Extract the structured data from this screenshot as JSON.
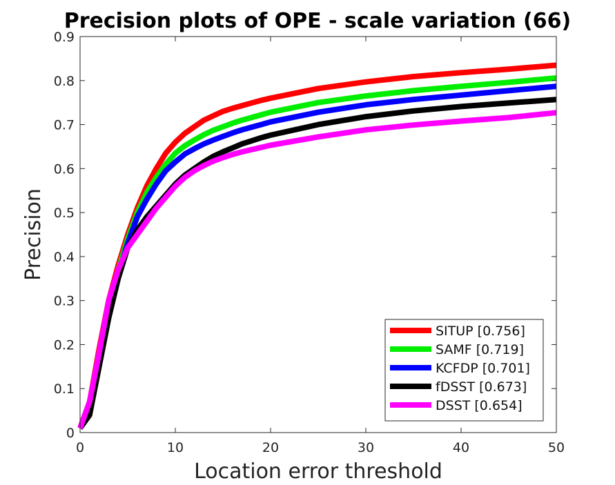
{
  "chart_data": {
    "type": "line",
    "title": "Precision plots of OPE - scale variation (66)",
    "xlabel": "Location error threshold",
    "ylabel": "Precision",
    "xlim": [
      0,
      50
    ],
    "ylim": [
      0,
      0.9
    ],
    "xticks": [
      0,
      10,
      20,
      30,
      40,
      50
    ],
    "yticks": [
      0,
      0.1,
      0.2,
      0.3,
      0.4,
      0.5,
      0.6,
      0.7,
      0.8,
      0.9
    ],
    "xtick_labels": [
      "0",
      "10",
      "20",
      "30",
      "40",
      "50"
    ],
    "ytick_labels": [
      "0",
      "0.1",
      "0.2",
      "0.3",
      "0.4",
      "0.5",
      "0.6",
      "0.7",
      "0.8",
      "0.9"
    ],
    "grid": false,
    "legend_position": "bottom-right",
    "x": [
      0,
      1,
      2,
      3,
      4,
      5,
      6,
      7,
      8,
      9,
      10,
      11,
      12,
      13,
      14,
      15,
      16,
      17,
      18,
      19,
      20,
      25,
      30,
      35,
      40,
      45,
      50
    ],
    "series": [
      {
        "name": "SITUP",
        "legend_label": "SITUP [0.756]",
        "color": "#ff0000",
        "values": [
          0.01,
          0.07,
          0.19,
          0.3,
          0.38,
          0.45,
          0.51,
          0.56,
          0.6,
          0.635,
          0.66,
          0.68,
          0.695,
          0.71,
          0.72,
          0.73,
          0.737,
          0.743,
          0.749,
          0.755,
          0.76,
          0.782,
          0.797,
          0.809,
          0.818,
          0.826,
          0.835
        ]
      },
      {
        "name": "SAMF",
        "legend_label": "SAMF [0.719]",
        "color": "#00ee00",
        "values": [
          0.01,
          0.07,
          0.18,
          0.29,
          0.37,
          0.44,
          0.5,
          0.545,
          0.58,
          0.61,
          0.635,
          0.652,
          0.665,
          0.677,
          0.687,
          0.695,
          0.703,
          0.71,
          0.716,
          0.722,
          0.728,
          0.75,
          0.765,
          0.777,
          0.787,
          0.796,
          0.806
        ]
      },
      {
        "name": "KCFDP",
        "legend_label": "KCFDP [0.701]",
        "color": "#0000ff",
        "values": [
          0.01,
          0.05,
          0.16,
          0.27,
          0.36,
          0.43,
          0.49,
          0.53,
          0.565,
          0.595,
          0.615,
          0.633,
          0.645,
          0.656,
          0.665,
          0.673,
          0.681,
          0.688,
          0.694,
          0.7,
          0.706,
          0.728,
          0.745,
          0.757,
          0.767,
          0.777,
          0.787
        ]
      },
      {
        "name": "fDSST",
        "legend_label": "fDSST [0.673]",
        "color": "#000000",
        "values": [
          0.01,
          0.04,
          0.15,
          0.26,
          0.35,
          0.42,
          0.46,
          0.49,
          0.515,
          0.54,
          0.565,
          0.585,
          0.6,
          0.615,
          0.628,
          0.638,
          0.647,
          0.656,
          0.663,
          0.67,
          0.676,
          0.7,
          0.718,
          0.731,
          0.741,
          0.749,
          0.757
        ]
      },
      {
        "name": "DSST",
        "legend_label": "DSST [0.654]",
        "color": "#ff00ff",
        "values": [
          0.01,
          0.07,
          0.18,
          0.3,
          0.37,
          0.42,
          0.45,
          0.48,
          0.51,
          0.535,
          0.56,
          0.58,
          0.595,
          0.607,
          0.617,
          0.625,
          0.632,
          0.638,
          0.643,
          0.648,
          0.653,
          0.672,
          0.688,
          0.699,
          0.708,
          0.716,
          0.727
        ]
      }
    ]
  }
}
